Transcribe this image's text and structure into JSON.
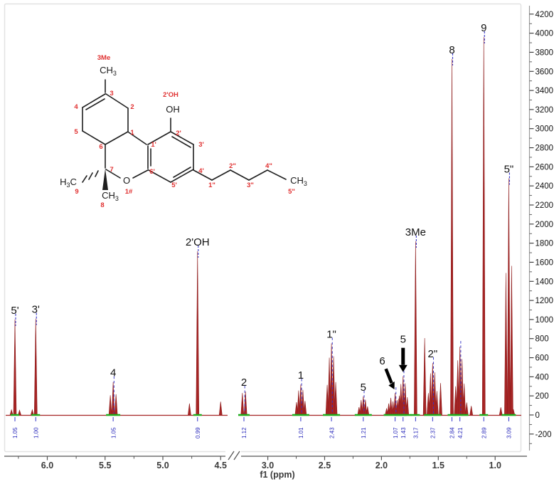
{
  "figure": {
    "kind": "1H NMR spectrum with molecular structure inset",
    "background": "#ffffff"
  },
  "colors": {
    "spectrum_line": "#a62424",
    "spectrum_stroke": "#8f1d1d",
    "integral_blue": "#3434c8",
    "integral_text_blue": "#2929bb",
    "integral_marker_green": "#1faf1f",
    "locant_red": "#e03131",
    "structure_black": "#1f1f1f",
    "axis_gray": "#555555",
    "ruler_gray": "#9a9a9a",
    "plot_border": "#e2e2e2"
  },
  "structure": {
    "labels": [
      {
        "text": "3Me",
        "color": "red"
      },
      {
        "text": "CH3",
        "color": "black"
      },
      {
        "text": "3",
        "color": "red"
      },
      {
        "text": "4",
        "color": "red"
      },
      {
        "text": "2",
        "color": "red"
      },
      {
        "text": "5",
        "color": "red"
      },
      {
        "text": "1",
        "color": "red"
      },
      {
        "text": "6",
        "color": "red"
      },
      {
        "text": "7",
        "color": "red"
      },
      {
        "text": "2'OH",
        "color": "red"
      },
      {
        "text": "OH",
        "color": "black"
      },
      {
        "text": "1'",
        "color": "red"
      },
      {
        "text": "2'",
        "color": "red"
      },
      {
        "text": "3'",
        "color": "red"
      },
      {
        "text": "4'",
        "color": "red"
      },
      {
        "text": "5'",
        "color": "red"
      },
      {
        "text": "6'",
        "color": "red"
      },
      {
        "text": "9",
        "color": "red"
      },
      {
        "text": "H3C",
        "color": "black"
      },
      {
        "text": "CH3",
        "color": "black"
      },
      {
        "text": "8",
        "color": "red"
      },
      {
        "text": "O",
        "color": "black"
      },
      {
        "text": "1#",
        "color": "red"
      },
      {
        "text": "1\"",
        "color": "red"
      },
      {
        "text": "2\"",
        "color": "red"
      },
      {
        "text": "3\"",
        "color": "red"
      },
      {
        "text": "4\"",
        "color": "red"
      },
      {
        "text": "CH3",
        "color": "black"
      },
      {
        "text": "5\"",
        "color": "red"
      }
    ]
  },
  "chart_data": {
    "type": "line",
    "subtype": "nmr-spectrum",
    "title": "",
    "xlabel": "f1 (ppm)",
    "ylabel": "",
    "x_axis": {
      "label": "f1 (ppm)",
      "break": true,
      "segments": [
        {
          "start": 6.36,
          "end": 4.44,
          "major_ticks": [
            6.0,
            5.5,
            5.0,
            4.5
          ],
          "minor_ticks": [
            6.25,
            5.75,
            5.25,
            4.75
          ]
        },
        {
          "start": 3.26,
          "end": 0.77,
          "major_ticks": [
            3.0,
            2.5,
            2.0,
            1.5,
            1.0
          ],
          "minor_ticks": [
            2.75,
            2.25,
            1.75,
            1.25
          ]
        }
      ],
      "tick_labels": [
        "6.0",
        "5.5",
        "5.0",
        "4.5",
        "3.0",
        "2.5",
        "2.0",
        "1.5",
        "1.0"
      ]
    },
    "y_axis": {
      "side": "right",
      "min": -200,
      "max": 4200,
      "major_step": 200,
      "minor_step": 100,
      "tick_labels": [
        "4200",
        "4000",
        "3800",
        "3600",
        "3400",
        "3200",
        "3000",
        "2800",
        "2600",
        "2400",
        "2200",
        "2000",
        "1800",
        "1600",
        "1400",
        "1200",
        "1000",
        "800",
        "600",
        "400",
        "200",
        "0",
        "-200"
      ]
    },
    "peaks": [
      {
        "ppm": 6.31,
        "intensity": 55,
        "shape": "s"
      },
      {
        "ppm": 6.28,
        "intensity": 1000,
        "shape": "s",
        "label": "5'",
        "integral": "1.05"
      },
      {
        "ppm": 6.24,
        "intensity": 50,
        "shape": "s"
      },
      {
        "ppm": 6.13,
        "intensity": 55,
        "shape": "s"
      },
      {
        "ppm": 6.1,
        "intensity": 1010,
        "shape": "s",
        "label": "3'",
        "integral": "1.00"
      },
      {
        "ppm": 5.43,
        "intensity": 345,
        "shape": "t",
        "label": "4",
        "integral": "1.05"
      },
      {
        "ppm": 4.77,
        "intensity": 120,
        "shape": "s"
      },
      {
        "ppm": 4.7,
        "intensity": 1715,
        "shape": "s",
        "label": "2'OH",
        "integral": "0.99"
      },
      {
        "ppm": 4.5,
        "intensity": 140,
        "shape": "s"
      },
      {
        "ppm": 3.21,
        "intensity": 245,
        "shape": "d",
        "label": "2",
        "integral": "1.12"
      },
      {
        "ppm": 2.71,
        "intensity": 320,
        "shape": "m",
        "label": "1",
        "integral": "1.01"
      },
      {
        "ppm": 2.44,
        "intensity": 750,
        "shape": "m",
        "label": "1\"",
        "integral": "2.43"
      },
      {
        "ppm": 2.16,
        "intensity": 195,
        "shape": "m",
        "label": "5",
        "integral": "1.21"
      },
      {
        "ppm": 1.88,
        "intensity": 230,
        "shape": "br",
        "label": "6",
        "integral": "1.07",
        "arrow": "diagonal"
      },
      {
        "ppm": 1.81,
        "intensity": 405,
        "shape": "m",
        "label": "5",
        "integral": "1.43",
        "arrow": "down"
      },
      {
        "ppm": 1.7,
        "intensity": 1820,
        "shape": "s",
        "label": "3Me",
        "integral": "3.17"
      },
      {
        "ppm": 1.62,
        "intensity": 805,
        "shape": "s"
      },
      {
        "ppm": 1.55,
        "intensity": 545,
        "shape": "m",
        "label": "2\"",
        "integral": "2.37"
      },
      {
        "ppm": 1.48,
        "intensity": 335,
        "shape": "s"
      },
      {
        "ppm": 1.38,
        "intensity": 3730,
        "shape": "s",
        "label": "8",
        "integral": "2.84"
      },
      {
        "ppm": 1.31,
        "intensity": 715,
        "shape": "m",
        "integral": "4.21"
      },
      {
        "ppm": 1.25,
        "intensity": 130,
        "shape": "s"
      },
      {
        "ppm": 1.21,
        "intensity": 95,
        "shape": "s"
      },
      {
        "ppm": 1.1,
        "intensity": 3960,
        "shape": "s",
        "label": "9",
        "integral": "2.89"
      },
      {
        "ppm": 0.95,
        "intensity": 80,
        "shape": "s"
      },
      {
        "ppm": 0.88,
        "intensity": 2480,
        "shape": "t",
        "label": "5\"",
        "integral": "3.09"
      },
      {
        "ppm": 0.84,
        "intensity": 60,
        "shape": "s"
      }
    ]
  }
}
